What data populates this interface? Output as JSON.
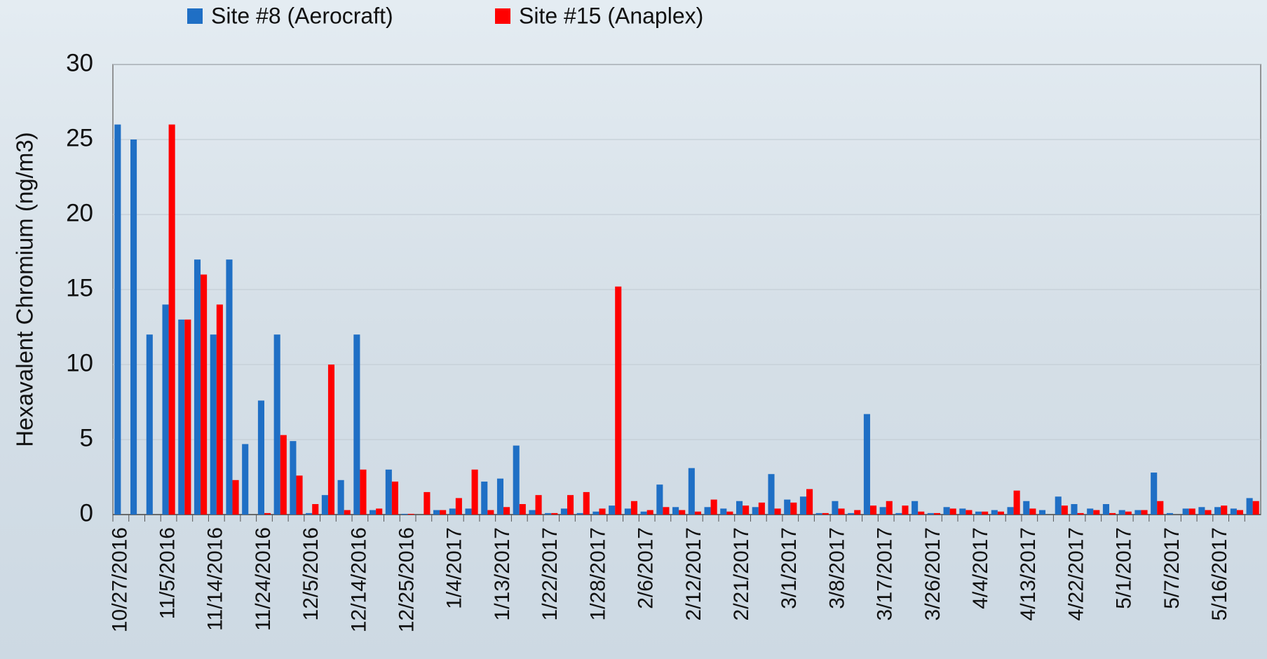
{
  "chart_data": {
    "type": "bar",
    "y_label": "Hexavalent Chromium (ng/m3)",
    "categories": [
      "10/27/2016",
      null,
      null,
      "11/5/2016",
      null,
      null,
      "11/14/2016",
      null,
      null,
      "11/24/2016",
      null,
      null,
      "12/5/2016",
      null,
      null,
      "12/14/2016",
      null,
      null,
      "12/25/2016",
      null,
      null,
      "1/4/2017",
      null,
      null,
      "1/13/2017",
      null,
      null,
      "1/22/2017",
      null,
      null,
      "1/28/2017",
      null,
      null,
      "2/6/2017",
      null,
      null,
      "2/12/2017",
      null,
      null,
      "2/21/2017",
      null,
      null,
      "3/1/2017",
      null,
      null,
      "3/8/2017",
      null,
      null,
      "3/17/2017",
      null,
      null,
      "3/26/2017",
      null,
      null,
      "4/4/2017",
      null,
      null,
      "4/13/2017",
      null,
      null,
      "4/22/2017",
      null,
      null,
      "5/1/2017",
      null,
      null,
      "5/7/2017",
      null,
      null,
      "5/16/2017",
      null,
      null
    ],
    "series": [
      {
        "name": "Site  #8 (Aerocraft)",
        "color": "#1f6fc5",
        "values": [
          26,
          25,
          12,
          14,
          13,
          17,
          12,
          17,
          4.7,
          7.6,
          12,
          4.9,
          0.1,
          1.3,
          2.3,
          12,
          0.3,
          3,
          0.05,
          0,
          0.3,
          0.4,
          0.4,
          2.2,
          2.4,
          4.6,
          0.3,
          0.1,
          0.4,
          0.1,
          0.2,
          0.6,
          0.4,
          0.2,
          2,
          0.5,
          3.1,
          0.5,
          0.4,
          0.9,
          0.5,
          2.7,
          1,
          1.2,
          0.1,
          0.9,
          0.1,
          6.7,
          0.5,
          0.1,
          0.9,
          0.1,
          0.5,
          0.4,
          0.2,
          0.3,
          0.5,
          0.9,
          0.3,
          1.2,
          0.7,
          0.4,
          0.7,
          0.3,
          0.3,
          2.8,
          0.1,
          0.4,
          0.5,
          0.5,
          0.4,
          1.1
        ]
      },
      {
        "name": "Site #15 (Anaplex)",
        "color": "#ff0000",
        "values": [
          0,
          0,
          0,
          26,
          13,
          16,
          14,
          2.3,
          0,
          0.1,
          5.3,
          2.6,
          0.7,
          10,
          0.3,
          3,
          0.4,
          2.2,
          0.05,
          1.5,
          0.3,
          1.1,
          3,
          0.3,
          0.5,
          0.7,
          1.3,
          0.1,
          1.3,
          1.5,
          0.4,
          15.2,
          0.9,
          0.3,
          0.5,
          0.3,
          0.2,
          1,
          0.2,
          0.6,
          0.8,
          0.4,
          0.8,
          1.7,
          0.1,
          0.4,
          0.3,
          0.6,
          0.9,
          0.6,
          0.2,
          0.1,
          0.4,
          0.3,
          0.2,
          0.2,
          1.6,
          0.4,
          0,
          0.6,
          0.1,
          0.3,
          0.1,
          0.2,
          0.3,
          0.9,
          0,
          0.4,
          0.3,
          0.6,
          0.3,
          0.9
        ]
      }
    ],
    "ylim": [
      0,
      30
    ],
    "yticks": [
      0,
      5,
      10,
      15,
      20,
      25,
      30
    ],
    "grid": true,
    "legend": "top"
  }
}
